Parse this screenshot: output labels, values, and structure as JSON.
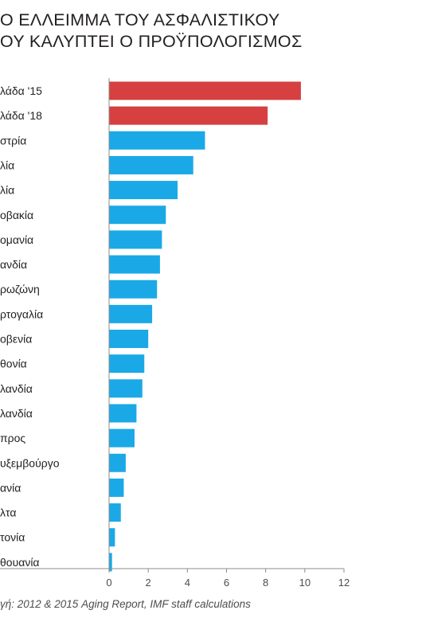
{
  "title_lines": [
    "Ο ΕΛΛΕΙΜΜΑ ΤΟΥ ΑΣΦΑΛΙΣΤΙΚΟΥ",
    "ΟΥ ΚΑΛΥΠΤΕΙ Ο ΠΡΟΫΠΟΛΟΓΙΣΜΟΣ"
  ],
  "source": "γή: 2012 & 2015 Aging Report, IMF staff calculations",
  "colors": {
    "highlight": "#d64040",
    "default": "#1aa9e6",
    "axis": "#8c8c8c",
    "text": "#231f20"
  },
  "chart_data": {
    "type": "bar",
    "orientation": "horizontal",
    "categories": [
      "λάδα '15",
      "λάδα '18",
      "στρία",
      "λία",
      "λία",
      "οβακία",
      "ομανία",
      "ανδία",
      "ρωζώνη",
      "ρτογαλία",
      "οβενία",
      "θονία",
      "λανδία",
      "λανδία",
      "προς",
      "υξεμβούργο",
      "ανία",
      "λτα",
      "τονία",
      "θουανία"
    ],
    "values": [
      9.8,
      8.1,
      4.9,
      4.3,
      3.5,
      2.9,
      2.7,
      2.6,
      2.45,
      2.2,
      2.0,
      1.8,
      1.7,
      1.4,
      1.3,
      0.85,
      0.75,
      0.6,
      0.3,
      0.15
    ],
    "highlighted": [
      true,
      true,
      false,
      false,
      false,
      false,
      false,
      false,
      false,
      false,
      false,
      false,
      false,
      false,
      false,
      false,
      false,
      false,
      false,
      false
    ],
    "xlim": [
      0,
      12
    ],
    "xticks": [
      0,
      2,
      4,
      6,
      8,
      10,
      12
    ],
    "grid": false
  }
}
